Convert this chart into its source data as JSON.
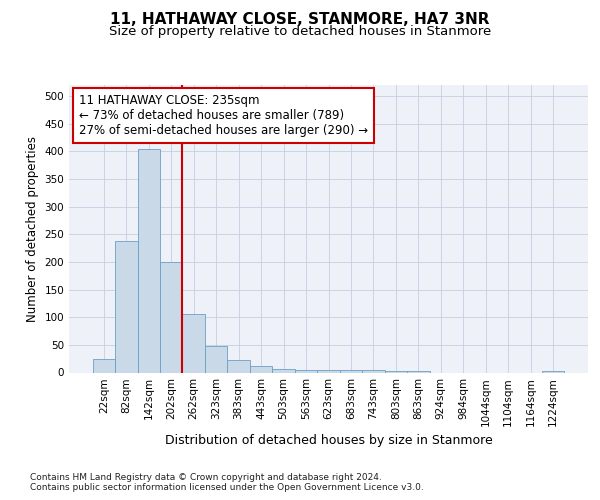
{
  "title": "11, HATHAWAY CLOSE, STANMORE, HA7 3NR",
  "subtitle": "Size of property relative to detached houses in Stanmore",
  "xlabel": "Distribution of detached houses by size in Stanmore",
  "ylabel": "Number of detached properties",
  "bar_labels": [
    "22sqm",
    "82sqm",
    "142sqm",
    "202sqm",
    "262sqm",
    "323sqm",
    "383sqm",
    "443sqm",
    "503sqm",
    "563sqm",
    "623sqm",
    "683sqm",
    "743sqm",
    "803sqm",
    "863sqm",
    "924sqm",
    "984sqm",
    "1044sqm",
    "1104sqm",
    "1164sqm",
    "1224sqm"
  ],
  "bar_values": [
    25,
    238,
    405,
    199,
    105,
    48,
    23,
    12,
    7,
    5,
    5,
    5,
    5,
    2,
    2,
    0,
    0,
    0,
    0,
    0,
    3
  ],
  "bar_color": "#c9d9e8",
  "bar_edgecolor": "#6aa0c7",
  "vline_x": 3.5,
  "vline_color": "#cc0000",
  "annotation_text": "11 HATHAWAY CLOSE: 235sqm\n← 73% of detached houses are smaller (789)\n27% of semi-detached houses are larger (290) →",
  "annotation_box_color": "#ffffff",
  "annotation_box_edgecolor": "#cc0000",
  "ylim": [
    0,
    520
  ],
  "yticks": [
    0,
    50,
    100,
    150,
    200,
    250,
    300,
    350,
    400,
    450,
    500
  ],
  "background_color": "#eef2f8",
  "footer_text": "Contains HM Land Registry data © Crown copyright and database right 2024.\nContains public sector information licensed under the Open Government Licence v3.0.",
  "title_fontsize": 11,
  "subtitle_fontsize": 9.5,
  "xlabel_fontsize": 9,
  "ylabel_fontsize": 8.5,
  "tick_fontsize": 7.5,
  "annotation_fontsize": 8.5
}
